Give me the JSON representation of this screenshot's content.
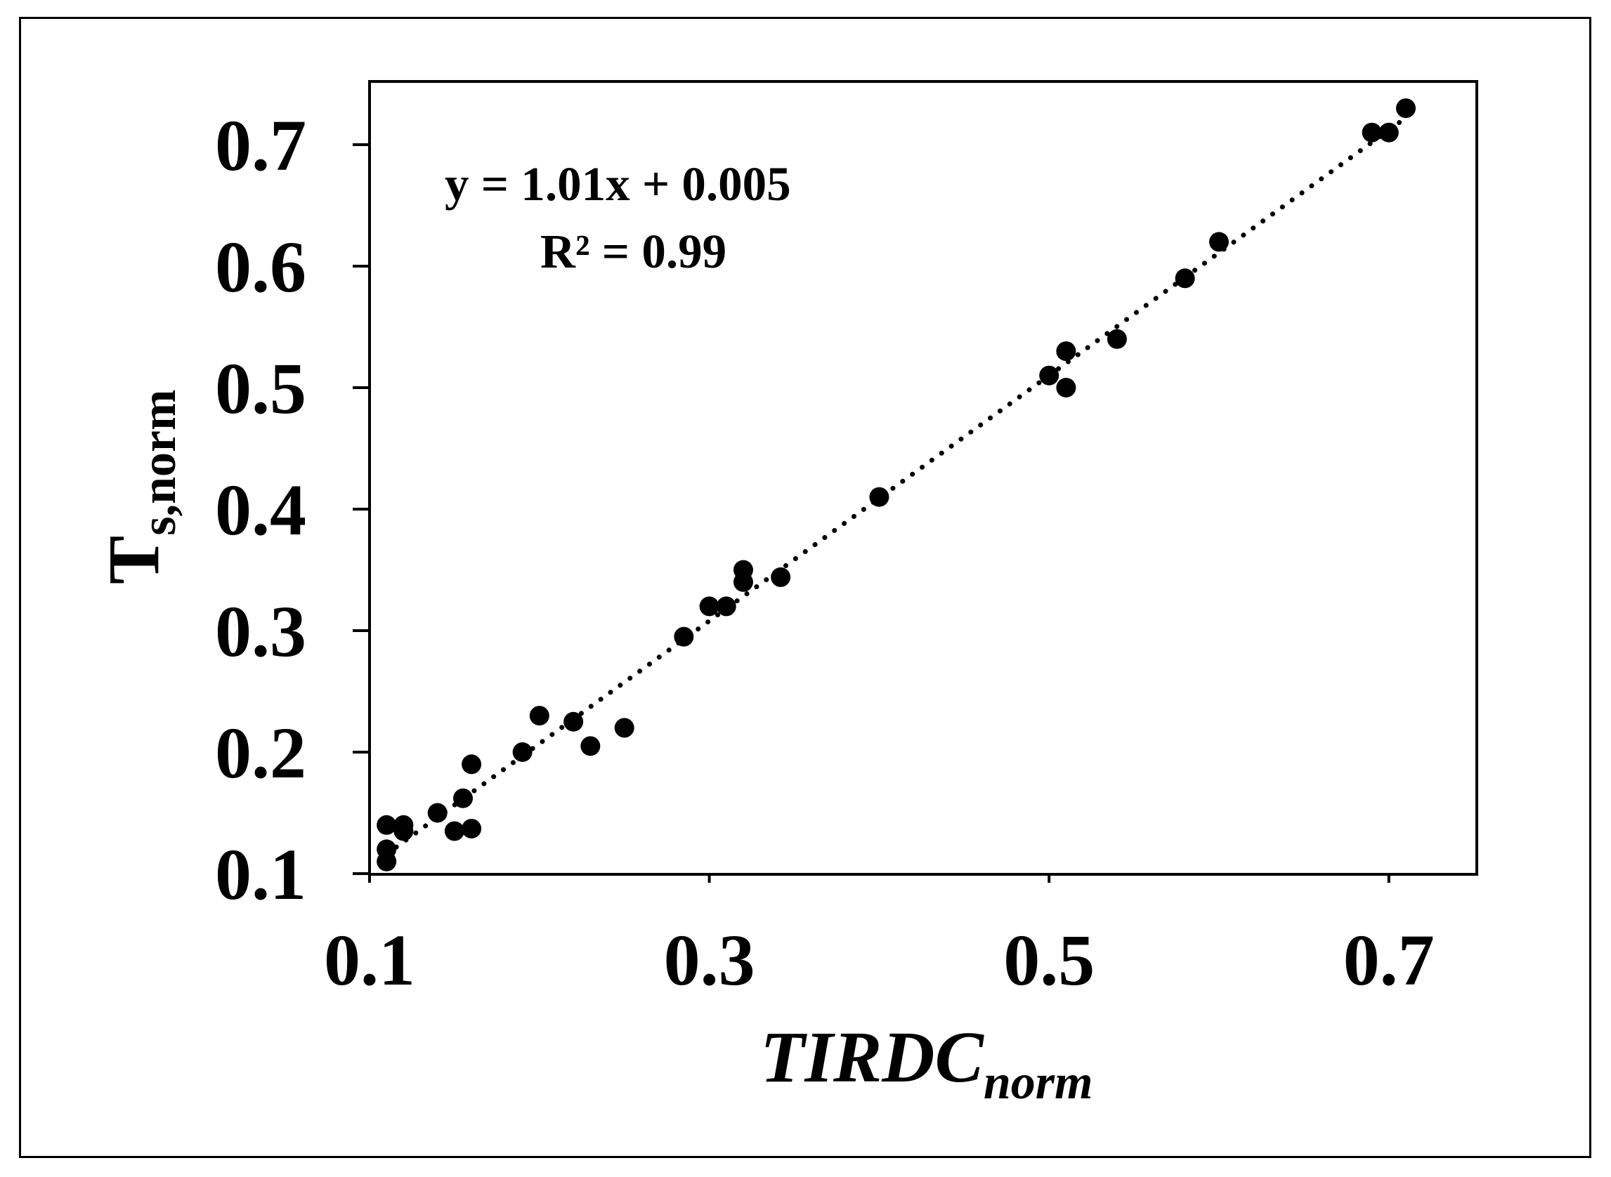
{
  "chart_data": {
    "type": "scatter",
    "title": "",
    "xlabel": "TIRDC",
    "xlabel_subscript": "norm",
    "ylabel": "T",
    "ylabel_subscript": "s,norm",
    "xlim": [
      0.1,
      0.75
    ],
    "ylim": [
      0.1,
      0.75
    ],
    "x_ticks": [
      0.1,
      0.3,
      0.5,
      0.7
    ],
    "x_tick_labels": [
      "0.1",
      "0.3",
      "0.5",
      "0.7"
    ],
    "y_ticks": [
      0.1,
      0.2,
      0.3,
      0.4,
      0.5,
      0.6,
      0.7
    ],
    "y_tick_labels": [
      "0.1",
      "0.2",
      "0.3",
      "0.4",
      "0.5",
      "0.6",
      "0.7"
    ],
    "grid": false,
    "legend": "none",
    "annotations": [
      "y = 1.01x + 0.005",
      "R² = 0.99"
    ],
    "trendline": {
      "style": "dotted",
      "slope": 1.01,
      "intercept": 0.005,
      "x_range": [
        0.11,
        0.71
      ]
    },
    "marker_color": "#000000",
    "x": [
      0.11,
      0.11,
      0.11,
      0.12,
      0.12,
      0.14,
      0.15,
      0.155,
      0.16,
      0.16,
      0.19,
      0.2,
      0.22,
      0.23,
      0.25,
      0.285,
      0.3,
      0.31,
      0.32,
      0.32,
      0.342,
      0.4,
      0.5,
      0.51,
      0.51,
      0.54,
      0.58,
      0.6,
      0.69,
      0.7,
      0.71
    ],
    "y": [
      0.11,
      0.12,
      0.14,
      0.135,
      0.14,
      0.15,
      0.135,
      0.162,
      0.137,
      0.19,
      0.2,
      0.23,
      0.225,
      0.205,
      0.22,
      0.295,
      0.32,
      0.32,
      0.34,
      0.35,
      0.344,
      0.41,
      0.51,
      0.53,
      0.5,
      0.54,
      0.59,
      0.62,
      0.71,
      0.71,
      0.73
    ]
  }
}
